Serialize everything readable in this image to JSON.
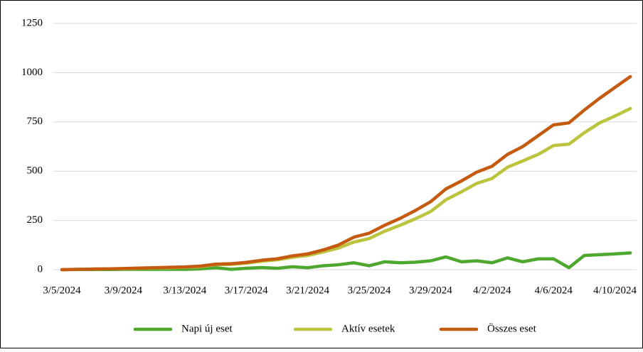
{
  "chart_data": {
    "type": "line",
    "categories": [
      "3/5/2024",
      null,
      null,
      null,
      "3/9/2024",
      null,
      null,
      null,
      "3/13/2024",
      null,
      null,
      null,
      "3/17/2024",
      null,
      null,
      null,
      "3/21/2024",
      null,
      null,
      null,
      "3/25/2024",
      null,
      null,
      null,
      "3/29/2024",
      null,
      null,
      null,
      "4/2/2024",
      null,
      null,
      null,
      "4/6/2024",
      null,
      null,
      null,
      "4/10/2024",
      null
    ],
    "series": [
      {
        "name": "Napi új eset",
        "color": "#4ea72e",
        "values": [
          0,
          1,
          1,
          1,
          2,
          2,
          2,
          2,
          2,
          4,
          10,
          2,
          7,
          11,
          7,
          15,
          10,
          20,
          25,
          35,
          20,
          40,
          35,
          38,
          45,
          65,
          40,
          45,
          35,
          60,
          40,
          55,
          55,
          10,
          72,
          76,
          80,
          85
        ]
      },
      {
        "name": "Aktív esetek",
        "color": "#bbc43c",
        "values": [
          0,
          2,
          3,
          4,
          5,
          7,
          9,
          10,
          12,
          15,
          25,
          27,
          33,
          43,
          50,
          63,
          72,
          90,
          110,
          140,
          158,
          195,
          225,
          258,
          295,
          355,
          395,
          438,
          463,
          520,
          552,
          585,
          630,
          637,
          695,
          745,
          780,
          818
        ]
      },
      {
        "name": "Összes eset",
        "color": "#c55a11",
        "values": [
          0,
          2,
          3,
          4,
          6,
          8,
          10,
          12,
          14,
          18,
          28,
          30,
          37,
          48,
          55,
          70,
          80,
          100,
          125,
          165,
          185,
          225,
          260,
          300,
          345,
          410,
          450,
          495,
          525,
          585,
          625,
          680,
          735,
          745,
          810,
          870,
          925,
          980
        ]
      }
    ],
    "ylim": [
      0,
      1250
    ],
    "yticks": [
      0,
      250,
      500,
      750,
      1000,
      1250
    ],
    "grid": true,
    "legend": "bottom"
  }
}
